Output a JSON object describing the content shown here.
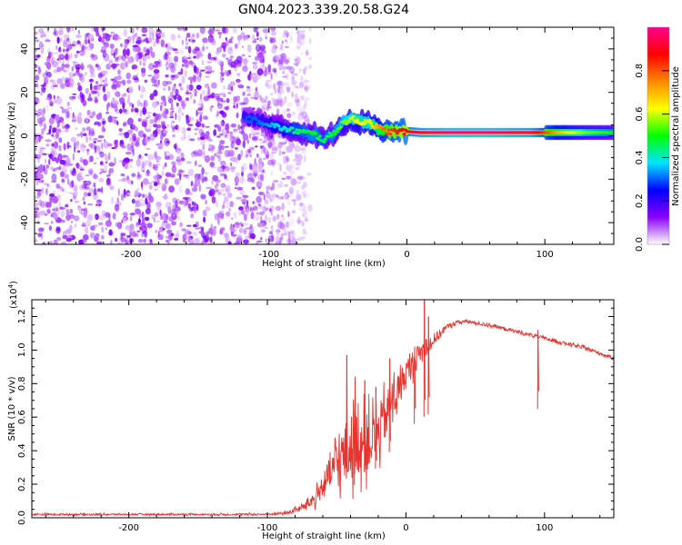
{
  "title": "GN04.2023.339.20.58.G24",
  "chart_data": [
    {
      "type": "heatmap",
      "xlabel": "Height of straight line (km)",
      "ylabel": "Frequency (Hz)",
      "xlim": [
        -270,
        150
      ],
      "ylim": [
        -50,
        50
      ],
      "xticks": [
        -200,
        -100,
        0,
        100
      ],
      "yticks": [
        -40,
        -20,
        0,
        20,
        40
      ],
      "colorbar": {
        "label": "Normalized spectral amplitude",
        "range": [
          0,
          1
        ],
        "ticks": [
          0.0,
          0.2,
          0.4,
          0.6,
          0.8
        ],
        "colors": [
          "#ffffff",
          "#8a00ff",
          "#0000ff",
          "#00e5ff",
          "#00ff00",
          "#ffff00",
          "#ff8800",
          "#ff0000",
          "#ff0090"
        ]
      },
      "noise_region_x": [
        -270,
        -80
      ],
      "ridge": [
        {
          "x": -118,
          "y": 8,
          "amp": 0.3
        },
        {
          "x": -108,
          "y": 7,
          "amp": 0.3
        },
        {
          "x": -98,
          "y": 5,
          "amp": 0.35
        },
        {
          "x": -88,
          "y": 3,
          "amp": 0.4
        },
        {
          "x": -78,
          "y": 2,
          "amp": 0.45
        },
        {
          "x": -68,
          "y": 1,
          "amp": 0.5
        },
        {
          "x": -60,
          "y": -2,
          "amp": 0.45
        },
        {
          "x": -52,
          "y": 2,
          "amp": 0.5
        },
        {
          "x": -46,
          "y": 6,
          "amp": 0.55
        },
        {
          "x": -40,
          "y": 8,
          "amp": 0.6
        },
        {
          "x": -34,
          "y": 6,
          "amp": 0.65
        },
        {
          "x": -28,
          "y": 7,
          "amp": 0.6
        },
        {
          "x": -22,
          "y": 4,
          "amp": 0.7
        },
        {
          "x": -15,
          "y": 2,
          "amp": 0.8
        },
        {
          "x": -8,
          "y": 2,
          "amp": 0.85
        },
        {
          "x": 0,
          "y": 2,
          "amp": 0.9
        },
        {
          "x": 10,
          "y": 1.5,
          "amp": 0.95
        },
        {
          "x": 30,
          "y": 1.5,
          "amp": 1.0
        },
        {
          "x": 60,
          "y": 1.5,
          "amp": 1.0
        },
        {
          "x": 90,
          "y": 1.5,
          "amp": 0.95
        },
        {
          "x": 110,
          "y": 1.5,
          "amp": 0.7
        },
        {
          "x": 130,
          "y": 1.5,
          "amp": 0.55
        },
        {
          "x": 150,
          "y": 1.5,
          "amp": 0.5
        }
      ]
    },
    {
      "type": "line",
      "xlabel": "Height of straight line (km)",
      "ylabel": "SNR (10 * v/v)",
      "multiplier": "(x10",
      "multiplier_exp": "4",
      "multiplier_close": ")",
      "xlim": [
        -270,
        150
      ],
      "ylim": [
        0,
        1.3
      ],
      "xticks": [
        -200,
        -100,
        0,
        100
      ],
      "yticks": [
        0.0,
        0.2,
        0.4,
        0.6,
        0.8,
        1.0,
        1.2
      ],
      "color": "#e8332e",
      "series": [
        {
          "x": [
            -270,
            -200,
            -150,
            -100,
            -85,
            -75,
            -65,
            -58,
            -50,
            -42,
            -35,
            -28,
            -20,
            -14,
            -8,
            -3,
            0,
            5,
            10,
            15,
            20,
            25,
            30,
            35,
            40,
            45,
            50,
            60,
            70,
            80,
            90,
            100,
            110,
            120,
            130,
            140,
            150
          ],
          "y": [
            0.02,
            0.02,
            0.02,
            0.02,
            0.03,
            0.06,
            0.12,
            0.22,
            0.32,
            0.4,
            0.45,
            0.45,
            0.5,
            0.62,
            0.72,
            0.8,
            0.86,
            0.92,
            0.98,
            1.02,
            1.06,
            1.1,
            1.14,
            1.16,
            1.17,
            1.17,
            1.16,
            1.15,
            1.13,
            1.11,
            1.09,
            1.07,
            1.05,
            1.03,
            1.01,
            0.98,
            0.95
          ],
          "noise": [
            0.005,
            0.005,
            0.005,
            0.006,
            0.01,
            0.02,
            0.05,
            0.08,
            0.14,
            0.2,
            0.2,
            0.18,
            0.17,
            0.14,
            0.12,
            0.1,
            0.09,
            0.08,
            0.06,
            0.05,
            0.04,
            0.025,
            0.015,
            0.012,
            0.01,
            0.01,
            0.01,
            0.01,
            0.01,
            0.01,
            0.01,
            0.01,
            0.01,
            0.01,
            0.01,
            0.01,
            0.01
          ]
        }
      ],
      "spikes": [
        {
          "x": -43,
          "y": 0.97
        },
        {
          "x": -37,
          "y": 0.84
        },
        {
          "x": -30,
          "y": 0.82
        },
        {
          "x": -22,
          "y": 0.78
        },
        {
          "x": -12,
          "y": 0.95
        },
        {
          "x": 6,
          "y": 1.02
        },
        {
          "x": 13,
          "y": 1.3
        },
        {
          "x": 16,
          "y": 1.2
        },
        {
          "x": 95,
          "y": 1.12
        }
      ]
    }
  ]
}
